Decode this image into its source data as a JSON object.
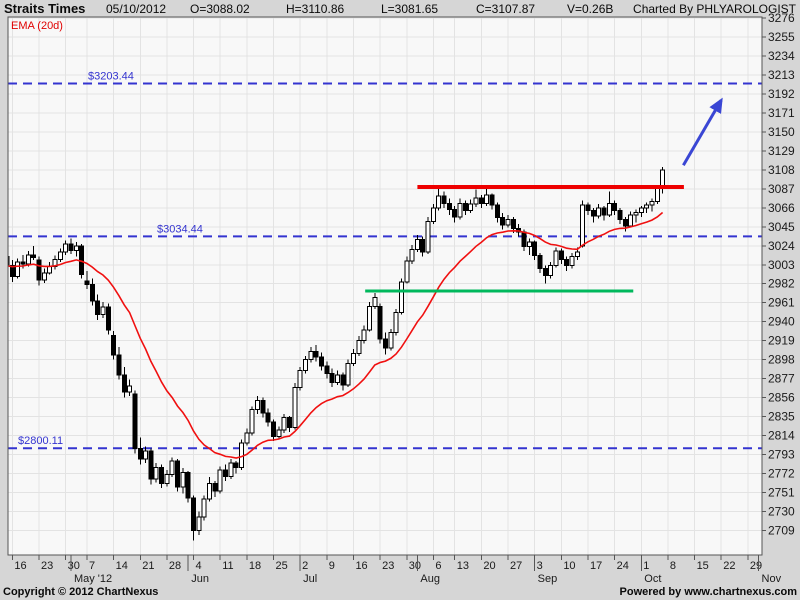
{
  "header": {
    "symbol": "Straits Times",
    "date": "05/10/2012",
    "open": "O=3088.02",
    "high": "H=3110.86",
    "low": "L=3081.65",
    "close": "C=3107.87",
    "volume": "V=0.26B",
    "charted_by": "Charted By PHLYAROLOGIST"
  },
  "footer": {
    "copyright": "Copyright © 2012 ChartNexus",
    "powered_by": "Powered by www.chartnexus.com"
  },
  "colors": {
    "page_bg": "#d6d6d6",
    "plot_bg": "#f8f8f8",
    "grid": "#e3e3e3",
    "border": "#555555",
    "candle_up_fill": "#ffffff",
    "candle_down_fill": "#000000",
    "candle_stroke": "#000000",
    "ema": "#f01010",
    "level_blue": "#3434d0",
    "resistance_red": "#ee0000",
    "support_green": "#00b85c",
    "arrow_blue": "#3a46d4",
    "axis_text": "#1a1a1a",
    "charted_by_gray": "#9b9b9b"
  },
  "chart_data": {
    "type": "candlestick",
    "title": "Straits Times",
    "indicator_label": "EMA (20d)",
    "ema_period": 20,
    "y_axis": {
      "min": 2682,
      "max": 3277,
      "tick_step": 21,
      "ticks": [
        2709,
        2730,
        2751,
        2772,
        2793,
        2814,
        2835,
        2856,
        2877,
        2898,
        2919,
        2940,
        2961,
        2982,
        3003,
        3024,
        3045,
        3066,
        3087,
        3108,
        3129,
        3150,
        3171,
        3192,
        3213,
        3234,
        3255,
        3276
      ]
    },
    "x_ticks": [
      {
        "label": "16",
        "i": 1
      },
      {
        "label": "23",
        "i": 6
      },
      {
        "label": "30",
        "i": 11
      },
      {
        "label": "7",
        "i": 15
      },
      {
        "label": "14",
        "i": 20
      },
      {
        "label": "21",
        "i": 25
      },
      {
        "label": "28",
        "i": 30
      },
      {
        "label": "4",
        "i": 35
      },
      {
        "label": "11",
        "i": 40
      },
      {
        "label": "18",
        "i": 45
      },
      {
        "label": "25",
        "i": 50
      },
      {
        "label": "2",
        "i": 55
      },
      {
        "label": "9",
        "i": 60
      },
      {
        "label": "16",
        "i": 65
      },
      {
        "label": "23",
        "i": 70
      },
      {
        "label": "30",
        "i": 75
      },
      {
        "label": "6",
        "i": 80
      },
      {
        "label": "13",
        "i": 84
      },
      {
        "label": "20",
        "i": 89
      },
      {
        "label": "27",
        "i": 94
      },
      {
        "label": "3",
        "i": 99
      },
      {
        "label": "10",
        "i": 104
      },
      {
        "label": "17",
        "i": 109
      },
      {
        "label": "24",
        "i": 114
      },
      {
        "label": "1",
        "i": 119
      },
      {
        "label": "8",
        "i": 124
      },
      {
        "label": "15",
        "i": 129
      },
      {
        "label": "22",
        "i": 134
      },
      {
        "label": "29",
        "i": 139
      }
    ],
    "month_labels": [
      {
        "label": "May '12",
        "i": 12
      },
      {
        "label": "Jun",
        "i": 34
      },
      {
        "label": "Jul",
        "i": 55
      },
      {
        "label": "Aug",
        "i": 77
      },
      {
        "label": "Sep",
        "i": 99
      },
      {
        "label": "Oct",
        "i": 119
      },
      {
        "label": "Nov",
        "i": 141
      }
    ],
    "horizontal_levels": [
      {
        "label": "$3203.44",
        "value": 3203.44,
        "label_x": 88,
        "style": "dashed"
      },
      {
        "label": "$3034.44",
        "value": 3034.44,
        "label_x": 157,
        "style": "dashed"
      },
      {
        "label": "$2800.11",
        "value": 2800.11,
        "label_x": 18,
        "style": "dashed"
      }
    ],
    "resistance_line": {
      "value": 3089,
      "from_i": 77,
      "to_i": 127
    },
    "support_line": {
      "value": 2974,
      "from_i": 67.2,
      "to_i": 117.5
    },
    "trend_arrow": {
      "from": {
        "i": 126.9,
        "value": 3113
      },
      "to": {
        "i": 134,
        "value": 3185
      }
    },
    "candles": [
      [
        "04/13",
        3012,
        3018,
        2996,
        3002
      ],
      [
        "04/16",
        3002,
        3008,
        2984,
        2990
      ],
      [
        "04/17",
        2990,
        3010,
        2988,
        3006
      ],
      [
        "04/18",
        3006,
        3014,
        2999,
        3004
      ],
      [
        "04/19",
        3004,
        3018,
        3001,
        3014
      ],
      [
        "04/20",
        3014,
        3024,
        3008,
        3011
      ],
      [
        "04/23",
        3008,
        3012,
        2980,
        2986
      ],
      [
        "04/24",
        2986,
        2999,
        2983,
        2994
      ],
      [
        "04/25",
        2994,
        3006,
        2992,
        3001
      ],
      [
        "04/26",
        3001,
        3013,
        2998,
        3009
      ],
      [
        "04/27",
        3009,
        3021,
        3006,
        3017
      ],
      [
        "04/30",
        3017,
        3030,
        3014,
        3026
      ],
      [
        "05/02",
        3026,
        3032,
        3015,
        3019
      ],
      [
        "05/03",
        3019,
        3028,
        3012,
        3024
      ],
      [
        "05/04",
        3024,
        3026,
        2988,
        2992
      ],
      [
        "05/07",
        2985,
        2996,
        2976,
        2981
      ],
      [
        "05/08",
        2981,
        2988,
        2958,
        2963
      ],
      [
        "05/09",
        2963,
        2970,
        2942,
        2948
      ],
      [
        "05/10",
        2948,
        2962,
        2944,
        2956
      ],
      [
        "05/11",
        2956,
        2960,
        2926,
        2931
      ],
      [
        "05/14",
        2925,
        2930,
        2898,
        2903
      ],
      [
        "05/15",
        2903,
        2912,
        2876,
        2881
      ],
      [
        "05/16",
        2881,
        2890,
        2856,
        2862
      ],
      [
        "05/17",
        2862,
        2876,
        2858,
        2869
      ],
      [
        "05/18",
        2860,
        2864,
        2794,
        2800
      ],
      [
        "05/21",
        2800,
        2812,
        2782,
        2788
      ],
      [
        "05/22",
        2788,
        2802,
        2784,
        2797
      ],
      [
        "05/23",
        2797,
        2800,
        2760,
        2766
      ],
      [
        "05/24",
        2766,
        2784,
        2762,
        2779
      ],
      [
        "05/25",
        2779,
        2782,
        2756,
        2761
      ],
      [
        "05/28",
        2761,
        2776,
        2758,
        2771
      ],
      [
        "05/29",
        2771,
        2790,
        2768,
        2786
      ],
      [
        "05/30",
        2786,
        2788,
        2752,
        2757
      ],
      [
        "05/31",
        2757,
        2778,
        2750,
        2773
      ],
      [
        "06/01",
        2773,
        2775,
        2740,
        2745
      ],
      [
        "06/04",
        2745,
        2748,
        2698,
        2709
      ],
      [
        "06/05",
        2709,
        2730,
        2704,
        2724
      ],
      [
        "06/06",
        2724,
        2748,
        2720,
        2744
      ],
      [
        "06/07",
        2744,
        2768,
        2741,
        2761
      ],
      [
        "06/08",
        2761,
        2764,
        2746,
        2753
      ],
      [
        "06/11",
        2753,
        2780,
        2750,
        2776
      ],
      [
        "06/12",
        2776,
        2782,
        2764,
        2769
      ],
      [
        "06/13",
        2769,
        2788,
        2766,
        2784
      ],
      [
        "06/14",
        2784,
        2786,
        2772,
        2779
      ],
      [
        "06/15",
        2779,
        2810,
        2776,
        2806
      ],
      [
        "06/18",
        2806,
        2822,
        2803,
        2817
      ],
      [
        "06/19",
        2817,
        2846,
        2814,
        2843
      ],
      [
        "06/20",
        2843,
        2858,
        2838,
        2853
      ],
      [
        "06/21",
        2853,
        2856,
        2834,
        2839
      ],
      [
        "06/22",
        2839,
        2844,
        2824,
        2829
      ],
      [
        "06/25",
        2829,
        2832,
        2808,
        2813
      ],
      [
        "06/26",
        2813,
        2824,
        2810,
        2820
      ],
      [
        "06/27",
        2820,
        2838,
        2817,
        2834
      ],
      [
        "06/28",
        2834,
        2836,
        2818,
        2823
      ],
      [
        "06/29",
        2823,
        2872,
        2821,
        2867
      ],
      [
        "07/02",
        2867,
        2890,
        2864,
        2886
      ],
      [
        "07/03",
        2886,
        2902,
        2883,
        2898
      ],
      [
        "07/04",
        2898,
        2912,
        2895,
        2907
      ],
      [
        "07/05",
        2907,
        2914,
        2896,
        2901
      ],
      [
        "07/06",
        2901,
        2906,
        2886,
        2891
      ],
      [
        "07/09",
        2891,
        2896,
        2877,
        2883
      ],
      [
        "07/10",
        2883,
        2888,
        2868,
        2873
      ],
      [
        "07/11",
        2873,
        2886,
        2870,
        2881
      ],
      [
        "07/12",
        2881,
        2884,
        2864,
        2870
      ],
      [
        "07/13",
        2870,
        2898,
        2868,
        2894
      ],
      [
        "07/16",
        2894,
        2910,
        2891,
        2905
      ],
      [
        "07/17",
        2905,
        2924,
        2902,
        2919
      ],
      [
        "07/18",
        2919,
        2936,
        2916,
        2931
      ],
      [
        "07/19",
        2931,
        2962,
        2929,
        2957
      ],
      [
        "07/20",
        2957,
        2972,
        2954,
        2967
      ],
      [
        "07/23",
        2957,
        2960,
        2916,
        2921
      ],
      [
        "07/24",
        2921,
        2928,
        2904,
        2911
      ],
      [
        "07/25",
        2911,
        2932,
        2908,
        2928
      ],
      [
        "07/26",
        2928,
        2954,
        2925,
        2950
      ],
      [
        "07/27",
        2950,
        2988,
        2948,
        2984
      ],
      [
        "07/30",
        2984,
        3012,
        2982,
        3007
      ],
      [
        "07/31",
        3007,
        3025,
        3004,
        3020
      ],
      [
        "08/01",
        3020,
        3036,
        3017,
        3031
      ],
      [
        "08/02",
        3031,
        3034,
        3012,
        3017
      ],
      [
        "08/03",
        3017,
        3056,
        3015,
        3051
      ],
      [
        "08/06",
        3051,
        3070,
        3048,
        3066
      ],
      [
        "08/07",
        3066,
        3088,
        3063,
        3079
      ],
      [
        "08/08",
        3079,
        3084,
        3066,
        3071
      ],
      [
        "08/10",
        3071,
        3076,
        3058,
        3064
      ],
      [
        "08/13",
        3064,
        3068,
        3050,
        3056
      ],
      [
        "08/14",
        3056,
        3076,
        3053,
        3071
      ],
      [
        "08/15",
        3071,
        3074,
        3058,
        3063
      ],
      [
        "08/16",
        3063,
        3075,
        3060,
        3070
      ],
      [
        "08/17",
        3070,
        3086,
        3067,
        3077
      ],
      [
        "08/20",
        3077,
        3080,
        3066,
        3071
      ],
      [
        "08/21",
        3071,
        3088,
        3068,
        3080
      ],
      [
        "08/22",
        3080,
        3082,
        3064,
        3069
      ],
      [
        "08/23",
        3069,
        3072,
        3050,
        3055
      ],
      [
        "08/24",
        3055,
        3060,
        3042,
        3047
      ],
      [
        "08/27",
        3047,
        3058,
        3044,
        3053
      ],
      [
        "08/28",
        3053,
        3056,
        3038,
        3043
      ],
      [
        "08/29",
        3043,
        3048,
        3034,
        3039
      ],
      [
        "08/30",
        3039,
        3042,
        3018,
        3023
      ],
      [
        "08/31",
        3023,
        3032,
        3014,
        3028
      ],
      [
        "09/03",
        3028,
        3030,
        3008,
        3013
      ],
      [
        "09/04",
        3013,
        3016,
        2994,
        2999
      ],
      [
        "09/05",
        2999,
        3002,
        2982,
        2991
      ],
      [
        "09/06",
        2991,
        3006,
        2988,
        3002
      ],
      [
        "09/07",
        3002,
        3022,
        3000,
        3018
      ],
      [
        "09/10",
        3018,
        3021,
        3004,
        3009
      ],
      [
        "09/11",
        3009,
        3012,
        2996,
        3002
      ],
      [
        "09/12",
        3002,
        3016,
        2999,
        3012
      ],
      [
        "09/13",
        3012,
        3022,
        3008,
        3017
      ],
      [
        "09/14",
        3024,
        3074,
        3022,
        3069
      ],
      [
        "09/17",
        3069,
        3072,
        3058,
        3063
      ],
      [
        "09/18",
        3063,
        3066,
        3050,
        3057
      ],
      [
        "09/19",
        3057,
        3070,
        3054,
        3066
      ],
      [
        "09/20",
        3066,
        3068,
        3052,
        3058
      ],
      [
        "09/21",
        3058,
        3084,
        3056,
        3071
      ],
      [
        "09/24",
        3071,
        3074,
        3058,
        3063
      ],
      [
        "09/25",
        3063,
        3066,
        3048,
        3053
      ],
      [
        "09/26",
        3053,
        3056,
        3040,
        3046
      ],
      [
        "09/27",
        3046,
        3062,
        3044,
        3058
      ],
      [
        "09/28",
        3058,
        3064,
        3050,
        3061
      ],
      [
        "10/01",
        3061,
        3068,
        3056,
        3066
      ],
      [
        "10/02",
        3066,
        3072,
        3060,
        3069
      ],
      [
        "10/03",
        3069,
        3076,
        3062,
        3073
      ],
      [
        "10/04",
        3073,
        3090,
        3070,
        3088
      ],
      [
        "10/05",
        3088.02,
        3110.86,
        3081.65,
        3107.87
      ]
    ]
  }
}
